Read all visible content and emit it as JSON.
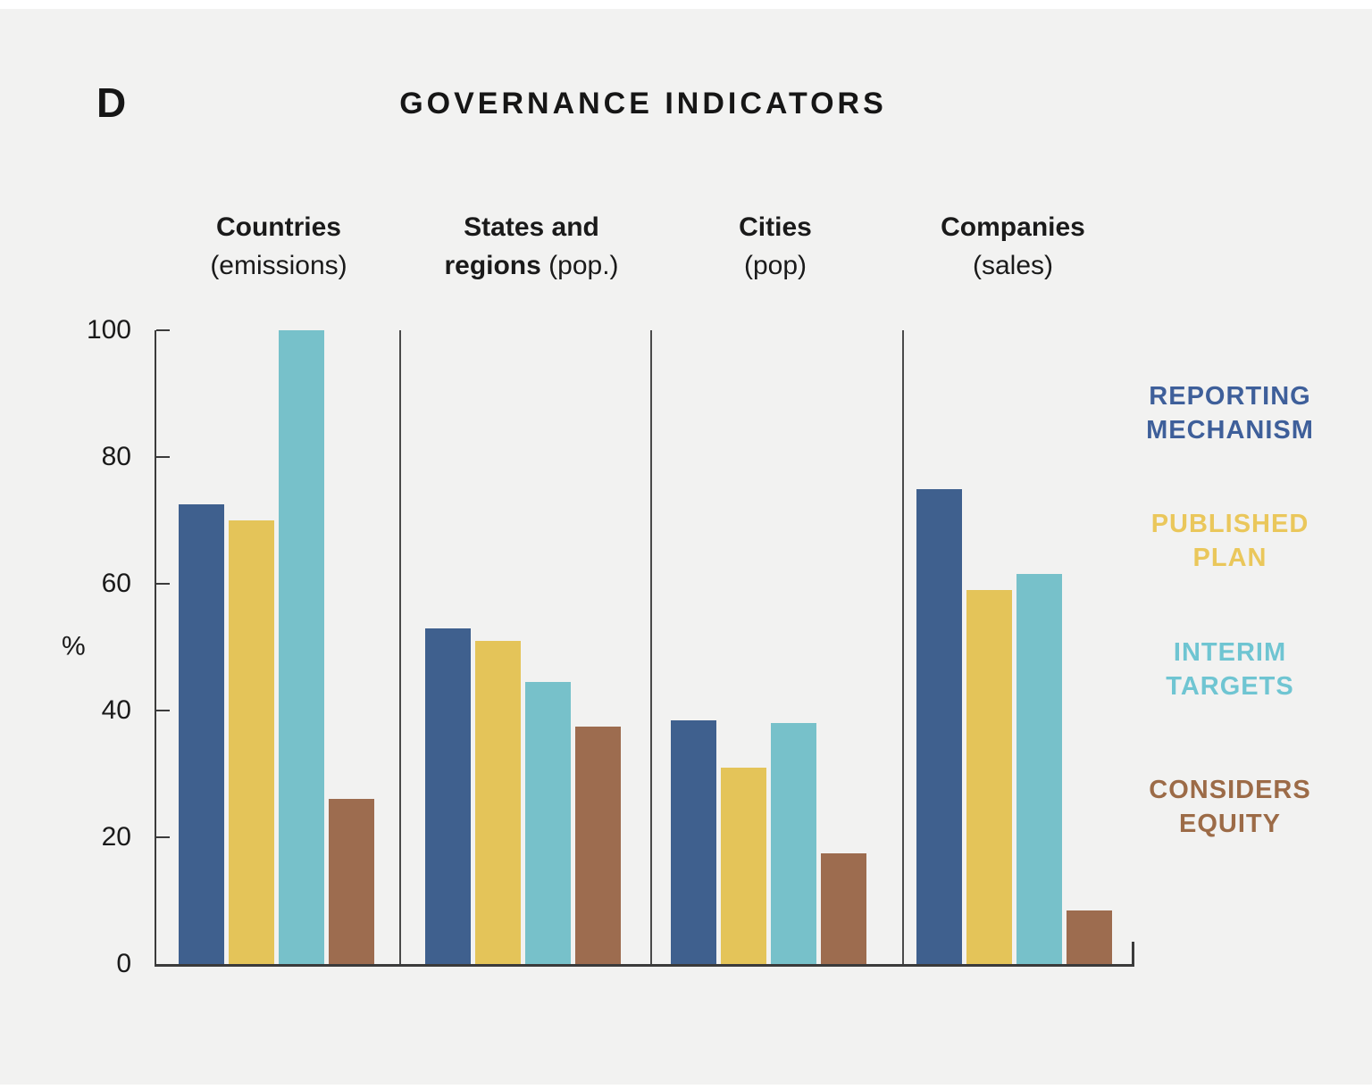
{
  "panel_label": "D",
  "title": "GOVERNANCE INDICATORS",
  "y_axis": {
    "unit": "%",
    "ticks": [
      100,
      80,
      60,
      40,
      20,
      0
    ],
    "min": 0,
    "max": 100
  },
  "groups": [
    {
      "name": "Countries (emissions)",
      "header_lines": [
        [
          {
            "text": "Countries",
            "bold": true
          }
        ],
        [
          {
            "text": "(emissions)",
            "bold": false
          }
        ]
      ]
    },
    {
      "name": "States and regions (pop.)",
      "header_lines": [
        [
          {
            "text": "States and",
            "bold": true
          }
        ],
        [
          {
            "text": "regions",
            "bold": true
          },
          {
            "text": " (pop.)",
            "bold": false
          }
        ]
      ]
    },
    {
      "name": "Cities (pop)",
      "header_lines": [
        [
          {
            "text": "Cities",
            "bold": true
          }
        ],
        [
          {
            "text": "(pop)",
            "bold": false
          }
        ]
      ]
    },
    {
      "name": "Companies (sales)",
      "header_lines": [
        [
          {
            "text": "Companies",
            "bold": true
          }
        ],
        [
          {
            "text": "(sales)",
            "bold": false
          }
        ]
      ]
    }
  ],
  "legend": [
    {
      "lines": [
        "REPORTING",
        "MECHANISM"
      ],
      "color": "#3E5F9A"
    },
    {
      "lines": [
        "PUBLISHED",
        "PLAN"
      ],
      "color": "#EAC75B"
    },
    {
      "lines": [
        "INTERIM",
        "TARGETS"
      ],
      "color": "#6FC5D2"
    },
    {
      "lines": [
        "CONSIDERS",
        "EQUITY"
      ],
      "color": "#9C6B47"
    }
  ],
  "colors": {
    "background": "#F2F2F1",
    "page_border": "#FFFFFF",
    "axis": "#3B3B3B",
    "text": "#1A1A1A",
    "reporting_mechanism": "#3F608E",
    "published_plan": "#E4C459",
    "interim_targets": "#77C1CA",
    "considers_equity": "#9D6C4F"
  },
  "chart_data": {
    "type": "bar",
    "title": "GOVERNANCE INDICATORS",
    "xlabel": "",
    "ylabel": "%",
    "ylim": [
      0,
      100
    ],
    "grid": false,
    "legend_position": "right",
    "categories": [
      "Countries (emissions)",
      "States and regions (pop.)",
      "Cities (pop)",
      "Companies (sales)"
    ],
    "series": [
      {
        "name": "REPORTING MECHANISM",
        "color": "#3F608E",
        "values": [
          72.5,
          53,
          38.5,
          75
        ]
      },
      {
        "name": "PUBLISHED PLAN",
        "color": "#E4C459",
        "values": [
          70,
          51,
          31,
          59
        ]
      },
      {
        "name": "INTERIM TARGETS",
        "color": "#77C1CA",
        "values": [
          100,
          44.5,
          38,
          61.5
        ]
      },
      {
        "name": "CONSIDERS EQUITY",
        "color": "#9D6C4F",
        "values": [
          26,
          37.5,
          17.5,
          8.5
        ]
      }
    ]
  }
}
